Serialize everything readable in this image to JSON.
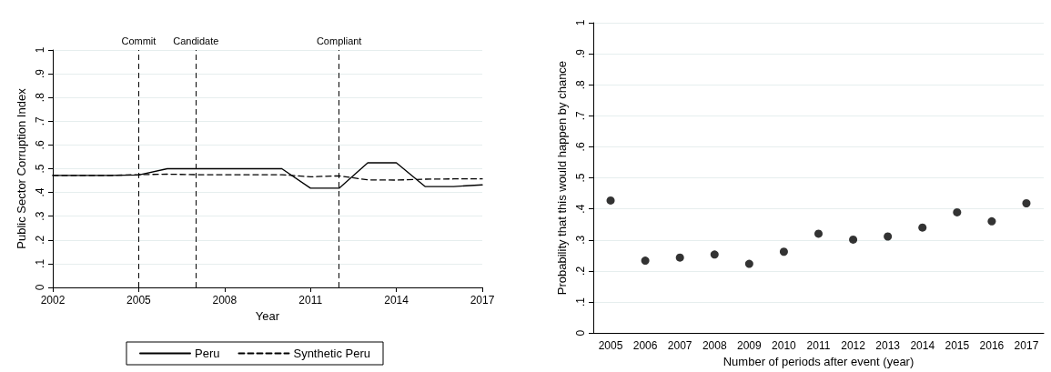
{
  "chart_data": [
    {
      "type": "line",
      "xlabel": "Year",
      "ylabel": "Public Sector Corruption Index",
      "x": [
        2002,
        2003,
        2004,
        2005,
        2006,
        2007,
        2008,
        2009,
        2010,
        2011,
        2012,
        2013,
        2014,
        2015,
        2016,
        2017
      ],
      "series": [
        {
          "name": "Peru",
          "color": "#000000",
          "line_style": "solid",
          "values": [
            0.472,
            0.472,
            0.472,
            0.474,
            0.5,
            0.5,
            0.5,
            0.5,
            0.5,
            0.418,
            0.418,
            0.525,
            0.525,
            0.425,
            0.425,
            0.432
          ]
        },
        {
          "name": "Synthetic Peru",
          "color": "#000000",
          "line_style": "dashed",
          "values": [
            0.472,
            0.472,
            0.472,
            0.475,
            0.477,
            0.475,
            0.475,
            0.475,
            0.475,
            0.466,
            0.47,
            0.453,
            0.452,
            0.456,
            0.457,
            0.457
          ]
        }
      ],
      "xlim": [
        2002,
        2017
      ],
      "xticks": [
        2002,
        2005,
        2008,
        2011,
        2014,
        2017
      ],
      "ylim": [
        0,
        1
      ],
      "yticks": [
        {
          "value": 0,
          "label": "0"
        },
        {
          "value": 0.1,
          "label": ".1"
        },
        {
          "value": 0.2,
          "label": ".2"
        },
        {
          "value": 0.3,
          "label": ".3"
        },
        {
          "value": 0.4,
          "label": ".4"
        },
        {
          "value": 0.5,
          "label": ".5"
        },
        {
          "value": 0.6,
          "label": ".6"
        },
        {
          "value": 0.7,
          "label": ".7"
        },
        {
          "value": 0.8,
          "label": ".8"
        },
        {
          "value": 0.9,
          "label": ".9"
        },
        {
          "value": 1,
          "label": "1"
        }
      ],
      "ref_lines": [
        {
          "axis": "x",
          "value": 2005,
          "label": "Commit",
          "color": "#000000",
          "line_style": "dashed"
        },
        {
          "axis": "x",
          "value": 2007,
          "label": "Candidate",
          "color": "#000000",
          "line_style": "dashed"
        },
        {
          "axis": "x",
          "value": 2012,
          "label": "Compliant",
          "color": "#000000",
          "line_style": "dashed"
        }
      ],
      "grid": "y",
      "legend": "bottom",
      "marker": "none"
    },
    {
      "type": "scatter",
      "xlabel": "Number of periods after event (year)",
      "ylabel": "Probability that this would happen by chance",
      "categories": [
        "2005",
        "2006",
        "2007",
        "2008",
        "2009",
        "2010",
        "2011",
        "2012",
        "2013",
        "2014",
        "2015",
        "2016",
        "2017"
      ],
      "values": [
        0.427,
        0.233,
        0.243,
        0.253,
        0.223,
        0.262,
        0.32,
        0.301,
        0.311,
        0.34,
        0.389,
        0.36,
        0.418
      ],
      "color": "#000000",
      "ylim": [
        0,
        1
      ],
      "yticks": [
        {
          "value": 0,
          "label": "0"
        },
        {
          "value": 0.1,
          "label": ".1"
        },
        {
          "value": 0.2,
          "label": ".2"
        },
        {
          "value": 0.3,
          "label": ".3"
        },
        {
          "value": 0.4,
          "label": ".4"
        },
        {
          "value": 0.5,
          "label": ".5"
        },
        {
          "value": 0.6,
          "label": ".6"
        },
        {
          "value": 0.7,
          "label": ".7"
        },
        {
          "value": 0.8,
          "label": ".8"
        },
        {
          "value": 0.9,
          "label": ".9"
        },
        {
          "value": 1,
          "label": "1"
        }
      ],
      "grid": "y",
      "legend": false,
      "marker": "circle"
    }
  ]
}
